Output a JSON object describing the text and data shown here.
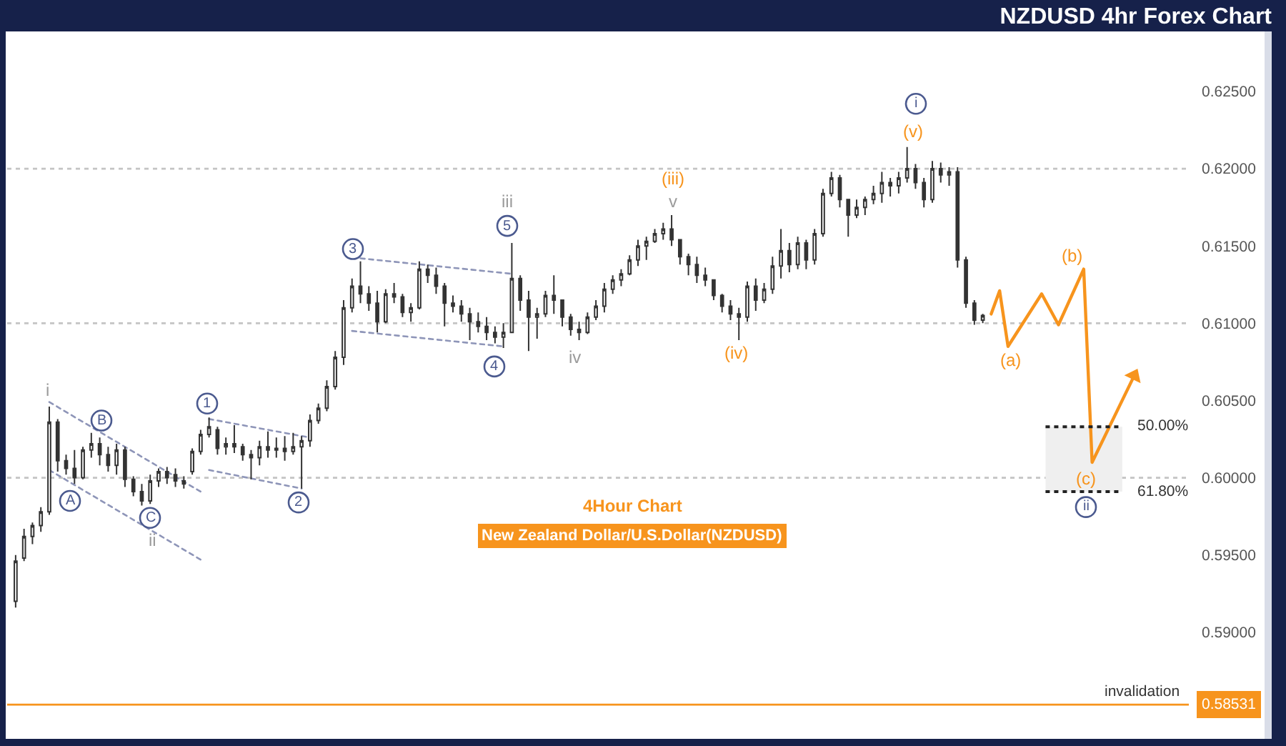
{
  "chart_data": {
    "type": "candlestick",
    "title": "NZDUSD 4hr Forex Chart",
    "categories": [
      null,
      null,
      null,
      null,
      null,
      null,
      null,
      null,
      null,
      null,
      null,
      null,
      null,
      null,
      null,
      null,
      null,
      null,
      null,
      null,
      null,
      null,
      null,
      null,
      null,
      null,
      null,
      null,
      null,
      null,
      null,
      null,
      null,
      null,
      null,
      null,
      null,
      null,
      null,
      null,
      null,
      null,
      null,
      null,
      null,
      null,
      null,
      null,
      null,
      null,
      null,
      null,
      null,
      null,
      null,
      null,
      null,
      null,
      null,
      null,
      null,
      null,
      null,
      null,
      null,
      null,
      null,
      null,
      null,
      null,
      null,
      null,
      null,
      null,
      null,
      null,
      null,
      null,
      null,
      null,
      null,
      null,
      null,
      null,
      null,
      null,
      null,
      null,
      null,
      null,
      null,
      null,
      null,
      null,
      null,
      null,
      null,
      null,
      null,
      null,
      null,
      null,
      null,
      null,
      null,
      null,
      null,
      null,
      null,
      null,
      null,
      null,
      null,
      null,
      null,
      null,
      null,
      null,
      null,
      null,
      null,
      null,
      null,
      null,
      null,
      null,
      null,
      null,
      null,
      null,
      null,
      null,
      null,
      null,
      null,
      null,
      null,
      null,
      null,
      null
    ],
    "color": "#333333",
    "ohlc": [
      [
        0.592,
        0.595,
        0.5916,
        0.5946
      ],
      [
        0.5948,
        0.5967,
        0.5946,
        0.5962
      ],
      [
        0.5962,
        0.5971,
        0.5957,
        0.5969
      ],
      [
        0.5969,
        0.5981,
        0.5965,
        0.5978
      ],
      [
        0.5978,
        0.6046,
        0.5976,
        0.6036
      ],
      [
        0.6036,
        0.6038,
        0.6004,
        0.6011
      ],
      [
        0.6011,
        0.6015,
        0.6002,
        0.6006
      ],
      [
        0.6006,
        0.6018,
        0.5996,
        0.6
      ],
      [
        0.6,
        0.602,
        0.5999,
        0.6018
      ],
      [
        0.6018,
        0.6029,
        0.6013,
        0.6022
      ],
      [
        0.6022,
        0.6026,
        0.6008,
        0.6015
      ],
      [
        0.6015,
        0.602,
        0.6004,
        0.6008
      ],
      [
        0.6008,
        0.6022,
        0.6002,
        0.6018
      ],
      [
        0.6018,
        0.602,
        0.5994,
        0.5999
      ],
      [
        0.5999,
        0.6001,
        0.5988,
        0.5991
      ],
      [
        0.5991,
        0.5996,
        0.5982,
        0.5985
      ],
      [
        0.5985,
        0.6002,
        0.5983,
        0.5998
      ],
      [
        0.5998,
        0.6006,
        0.5994,
        0.6004
      ],
      [
        0.6004,
        0.6007,
        0.5996,
        0.6
      ],
      [
        0.6002,
        0.6006,
        0.5994,
        0.5998
      ],
      [
        0.5998,
        0.6001,
        0.5993,
        0.5996
      ],
      [
        0.6004,
        0.6019,
        0.6002,
        0.6017
      ],
      [
        0.6017,
        0.6031,
        0.6015,
        0.6028
      ],
      [
        0.6028,
        0.6039,
        0.6026,
        0.6033
      ],
      [
        0.6031,
        0.6033,
        0.6015,
        0.6019
      ],
      [
        0.602,
        0.6026,
        0.6015,
        0.6022
      ],
      [
        0.6022,
        0.6034,
        0.6016,
        0.602
      ],
      [
        0.602,
        0.6022,
        0.6011,
        0.6015
      ],
      [
        0.6015,
        0.6018,
        0.5999,
        0.6013
      ],
      [
        0.6013,
        0.6024,
        0.6008,
        0.602
      ],
      [
        0.602,
        0.603,
        0.6013,
        0.6018
      ],
      [
        0.6018,
        0.6026,
        0.6013,
        0.6019
      ],
      [
        0.6019,
        0.6027,
        0.6011,
        0.6017
      ],
      [
        0.6017,
        0.6029,
        0.6015,
        0.602
      ],
      [
        0.602,
        0.6027,
        0.5993,
        0.6024
      ],
      [
        0.6024,
        0.6041,
        0.602,
        0.6037
      ],
      [
        0.6037,
        0.6048,
        0.6035,
        0.6045
      ],
      [
        0.6045,
        0.6063,
        0.6043,
        0.6059
      ],
      [
        0.6059,
        0.6082,
        0.6057,
        0.6078
      ],
      [
        0.6078,
        0.6115,
        0.6073,
        0.611
      ],
      [
        0.611,
        0.6129,
        0.6107,
        0.6124
      ],
      [
        0.6124,
        0.614,
        0.6113,
        0.6119
      ],
      [
        0.6119,
        0.6124,
        0.6108,
        0.6113
      ],
      [
        0.6113,
        0.6121,
        0.6094,
        0.6101
      ],
      [
        0.6101,
        0.6122,
        0.61,
        0.6119
      ],
      [
        0.6119,
        0.6126,
        0.6113,
        0.6117
      ],
      [
        0.6117,
        0.6119,
        0.6104,
        0.6107
      ],
      [
        0.6107,
        0.6113,
        0.6101,
        0.611
      ],
      [
        0.611,
        0.614,
        0.6109,
        0.6135
      ],
      [
        0.6135,
        0.6138,
        0.6126,
        0.6131
      ],
      [
        0.6131,
        0.6136,
        0.6119,
        0.6124
      ],
      [
        0.6124,
        0.6126,
        0.6098,
        0.6113
      ],
      [
        0.6113,
        0.6118,
        0.6107,
        0.6111
      ],
      [
        0.6111,
        0.6115,
        0.6101,
        0.6106
      ],
      [
        0.6106,
        0.611,
        0.6089,
        0.6101
      ],
      [
        0.6101,
        0.6107,
        0.6094,
        0.6098
      ],
      [
        0.6098,
        0.6104,
        0.6089,
        0.6094
      ],
      [
        0.6094,
        0.6098,
        0.6087,
        0.6091
      ],
      [
        0.6091,
        0.61,
        0.6084,
        0.6094
      ],
      [
        0.6094,
        0.6152,
        0.6094,
        0.6129
      ],
      [
        0.6129,
        0.6131,
        0.6108,
        0.6115
      ],
      [
        0.6115,
        0.6121,
        0.6082,
        0.6104
      ],
      [
        0.6104,
        0.611,
        0.609,
        0.6106
      ],
      [
        0.6106,
        0.6121,
        0.6104,
        0.6118
      ],
      [
        0.6118,
        0.6131,
        0.6106,
        0.6115
      ],
      [
        0.6115,
        0.6115,
        0.6098,
        0.6104
      ],
      [
        0.6104,
        0.6106,
        0.6092,
        0.6096
      ],
      [
        0.6096,
        0.6101,
        0.6089,
        0.6094
      ],
      [
        0.6094,
        0.6107,
        0.6093,
        0.6104
      ],
      [
        0.6104,
        0.6115,
        0.6102,
        0.6111
      ],
      [
        0.6111,
        0.6126,
        0.6107,
        0.6122
      ],
      [
        0.6122,
        0.6131,
        0.6119,
        0.6128
      ],
      [
        0.6128,
        0.6135,
        0.6124,
        0.6132
      ],
      [
        0.6132,
        0.6144,
        0.6131,
        0.6141
      ],
      [
        0.6141,
        0.6154,
        0.6137,
        0.615
      ],
      [
        0.615,
        0.6156,
        0.6141,
        0.6153
      ],
      [
        0.6153,
        0.6161,
        0.6152,
        0.6158
      ],
      [
        0.6158,
        0.6165,
        0.6154,
        0.6161
      ],
      [
        0.6161,
        0.617,
        0.615,
        0.6154
      ],
      [
        0.6154,
        0.6154,
        0.6138,
        0.6143
      ],
      [
        0.6143,
        0.6145,
        0.6131,
        0.6138
      ],
      [
        0.6138,
        0.6143,
        0.6126,
        0.6131
      ],
      [
        0.6131,
        0.6136,
        0.6124,
        0.6128
      ],
      [
        0.6128,
        0.6128,
        0.6115,
        0.6118
      ],
      [
        0.6118,
        0.6119,
        0.6107,
        0.6111
      ],
      [
        0.6111,
        0.6115,
        0.6102,
        0.6106
      ],
      [
        0.6106,
        0.611,
        0.6089,
        0.6104
      ],
      [
        0.6104,
        0.6127,
        0.6101,
        0.6124
      ],
      [
        0.6124,
        0.6129,
        0.6108,
        0.6115
      ],
      [
        0.6115,
        0.6126,
        0.6113,
        0.6122
      ],
      [
        0.6122,
        0.6143,
        0.6119,
        0.6137
      ],
      [
        0.6137,
        0.6161,
        0.6129,
        0.6147
      ],
      [
        0.6147,
        0.6152,
        0.6133,
        0.6138
      ],
      [
        0.6138,
        0.6156,
        0.6135,
        0.6152
      ],
      [
        0.6152,
        0.6154,
        0.6135,
        0.6141
      ],
      [
        0.6141,
        0.6161,
        0.6138,
        0.6158
      ],
      [
        0.6158,
        0.6187,
        0.6156,
        0.6184
      ],
      [
        0.6184,
        0.6198,
        0.6182,
        0.6194
      ],
      [
        0.6194,
        0.6196,
        0.6175,
        0.618
      ],
      [
        0.618,
        0.618,
        0.6156,
        0.617
      ],
      [
        0.617,
        0.618,
        0.6168,
        0.6175
      ],
      [
        0.6175,
        0.6182,
        0.617,
        0.618
      ],
      [
        0.618,
        0.6189,
        0.6177,
        0.6184
      ],
      [
        0.6184,
        0.6198,
        0.6178,
        0.6191
      ],
      [
        0.6191,
        0.6194,
        0.6182,
        0.6189
      ],
      [
        0.6189,
        0.6198,
        0.6184,
        0.6194
      ],
      [
        0.6194,
        0.6214,
        0.6191,
        0.62
      ],
      [
        0.62,
        0.6203,
        0.6187,
        0.6191
      ],
      [
        0.6191,
        0.6194,
        0.6175,
        0.618
      ],
      [
        0.618,
        0.6205,
        0.6178,
        0.62
      ],
      [
        0.62,
        0.6204,
        0.6191,
        0.6196
      ],
      [
        0.6196,
        0.6201,
        0.6189,
        0.6198
      ],
      [
        0.6198,
        0.6201,
        0.6136,
        0.6141
      ],
      [
        0.6141,
        0.6143,
        0.611,
        0.6113
      ],
      [
        0.6113,
        0.6115,
        0.6099,
        0.6102
      ],
      [
        0.6102,
        0.6106,
        0.61,
        0.6105
      ],
      null,
      null,
      null,
      null,
      null,
      null,
      null,
      null,
      null,
      null,
      null,
      null,
      null,
      null,
      null,
      null,
      null,
      null,
      null,
      null,
      null,
      null,
      null,
      null
    ],
    "series": [
      {
        "type": "line",
        "color": "#f7941d",
        "line_style": "solid",
        "values": [
          null,
          null,
          null,
          null,
          null,
          null,
          null,
          null,
          null,
          null,
          null,
          null,
          null,
          null,
          null,
          null,
          null,
          null,
          null,
          null,
          null,
          null,
          null,
          null,
          null,
          null,
          null,
          null,
          null,
          null,
          null,
          null,
          null,
          null,
          null,
          null,
          null,
          null,
          null,
          null,
          null,
          null,
          null,
          null,
          null,
          null,
          null,
          null,
          null,
          null,
          null,
          null,
          null,
          null,
          null,
          null,
          null,
          null,
          null,
          null,
          null,
          null,
          null,
          null,
          null,
          null,
          null,
          null,
          null,
          null,
          null,
          null,
          null,
          null,
          null,
          null,
          null,
          null,
          null,
          null,
          null,
          null,
          null,
          null,
          null,
          null,
          null,
          null,
          null,
          null,
          null,
          null,
          null,
          null,
          null,
          null,
          null,
          null,
          null,
          null,
          null,
          null,
          null,
          null,
          null,
          null,
          null,
          null,
          null,
          null,
          null,
          null,
          null,
          null,
          null,
          null,
          0.6106,
          0.6121,
          0.6085,
          null,
          null,
          null,
          0.6119,
          null,
          0.6099,
          null,
          null,
          0.6135,
          0.601,
          null,
          null,
          null,
          null,
          0.6066,
          null,
          null,
          null,
          null,
          null,
          null
        ]
      },
      {
        "type": "line",
        "color": "#8e95b8",
        "line_style": "dotted",
        "values": [
          null,
          null,
          null,
          null,
          0.6049,
          null,
          null,
          null,
          null,
          null,
          null,
          null,
          null,
          null,
          null,
          null,
          null,
          null,
          null,
          null,
          null,
          null,
          0.5991,
          null,
          null,
          null,
          null,
          null,
          null,
          null,
          null,
          null,
          null,
          null,
          null,
          null,
          null,
          null,
          null,
          null,
          null,
          null,
          null,
          null,
          null,
          null,
          null,
          null,
          null,
          null,
          null,
          null,
          null,
          null,
          null,
          null,
          null,
          null,
          null,
          null,
          null,
          null,
          null,
          null,
          null,
          null,
          null,
          null,
          null,
          null,
          null,
          null,
          null,
          null,
          null,
          null,
          null,
          null,
          null,
          null,
          null,
          null,
          null,
          null,
          null,
          null,
          null,
          null,
          null,
          null,
          null,
          null,
          null,
          null,
          null,
          null,
          null,
          null,
          null,
          null,
          null,
          null,
          null,
          null,
          null,
          null,
          null,
          null,
          null,
          null,
          null,
          null,
          null,
          null,
          null,
          null,
          null,
          null,
          null,
          null,
          null,
          null,
          null,
          null,
          null,
          null,
          null,
          null,
          null,
          null,
          null,
          null,
          null,
          null,
          null,
          null,
          null,
          null,
          null,
          null
        ]
      },
      {
        "type": "line",
        "color": "#8e95b8",
        "line_style": "dotted",
        "values": [
          null,
          null,
          null,
          null,
          0.6005,
          null,
          null,
          null,
          null,
          null,
          null,
          null,
          null,
          null,
          null,
          null,
          null,
          null,
          null,
          null,
          null,
          null,
          0.5947,
          null,
          null,
          null,
          null,
          null,
          null,
          null,
          null,
          null,
          null,
          null,
          null,
          null,
          null,
          null,
          null,
          null,
          null,
          null,
          null,
          null,
          null,
          null,
          null,
          null,
          null,
          null,
          null,
          null,
          null,
          null,
          null,
          null,
          null,
          null,
          null,
          null,
          null,
          null,
          null,
          null,
          null,
          null,
          null,
          null,
          null,
          null,
          null,
          null,
          null,
          null,
          null,
          null,
          null,
          null,
          null,
          null,
          null,
          null,
          null,
          null,
          null,
          null,
          null,
          null,
          null,
          null,
          null,
          null,
          null,
          null,
          null,
          null,
          null,
          null,
          null,
          null,
          null,
          null,
          null,
          null,
          null,
          null,
          null,
          null,
          null,
          null,
          null,
          null,
          null,
          null,
          null,
          null,
          null,
          null,
          null,
          null,
          null,
          null,
          null,
          null,
          null,
          null,
          null,
          null,
          null,
          null,
          null,
          null,
          null,
          null,
          null,
          null,
          null,
          null,
          null,
          null
        ]
      },
      {
        "type": "line",
        "color": "#8e95b8",
        "line_style": "dotted",
        "values": [
          null,
          null,
          null,
          null,
          null,
          null,
          null,
          null,
          null,
          null,
          null,
          null,
          null,
          null,
          null,
          null,
          null,
          null,
          null,
          null,
          null,
          null,
          null,
          0.6038,
          null,
          null,
          null,
          null,
          null,
          null,
          null,
          null,
          null,
          null,
          null,
          0.6026,
          null,
          null,
          null,
          null,
          null,
          null,
          null,
          null,
          null,
          null,
          null,
          null,
          null,
          null,
          null,
          null,
          null,
          null,
          null,
          null,
          null,
          null,
          null,
          null,
          null,
          null,
          null,
          null,
          null,
          null,
          null,
          null,
          null,
          null,
          null,
          null,
          null,
          null,
          null,
          null,
          null,
          null,
          null,
          null,
          null,
          null,
          null,
          null,
          null,
          null,
          null,
          null,
          null,
          null,
          null,
          null,
          null,
          null,
          null,
          null,
          null,
          null,
          null,
          null,
          null,
          null,
          null,
          null,
          null,
          null,
          null,
          null,
          null,
          null,
          null,
          null,
          null,
          null,
          null,
          null,
          null,
          null,
          null,
          null,
          null,
          null,
          null,
          null,
          null,
          null,
          null,
          null,
          null,
          null,
          null,
          null,
          null,
          null,
          null,
          null,
          null,
          null,
          null,
          null
        ]
      },
      {
        "type": "line",
        "color": "#8e95b8",
        "line_style": "dotted",
        "values": [
          null,
          null,
          null,
          null,
          null,
          null,
          null,
          null,
          null,
          null,
          null,
          null,
          null,
          null,
          null,
          null,
          null,
          null,
          null,
          null,
          null,
          null,
          null,
          0.6005,
          null,
          null,
          null,
          null,
          null,
          null,
          null,
          null,
          null,
          null,
          0.5993,
          null,
          null,
          null,
          null,
          null,
          null,
          null,
          null,
          null,
          null,
          null,
          null,
          null,
          null,
          null,
          null,
          null,
          null,
          null,
          null,
          null,
          null,
          null,
          null,
          null,
          null,
          null,
          null,
          null,
          null,
          null,
          null,
          null,
          null,
          null,
          null,
          null,
          null,
          null,
          null,
          null,
          null,
          null,
          null,
          null,
          null,
          null,
          null,
          null,
          null,
          null,
          null,
          null,
          null,
          null,
          null,
          null,
          null,
          null,
          null,
          null,
          null,
          null,
          null,
          null,
          null,
          null,
          null,
          null,
          null,
          null,
          null,
          null,
          null,
          null,
          null,
          null,
          null,
          null,
          null,
          null,
          null,
          null,
          null,
          null,
          null,
          null,
          null,
          null,
          null,
          null,
          null,
          null,
          null,
          null,
          null,
          null,
          null,
          null,
          null,
          null,
          null,
          null,
          null,
          null
        ]
      },
      {
        "type": "line",
        "color": "#8e95b8",
        "line_style": "dotted",
        "values": [
          null,
          null,
          null,
          null,
          null,
          null,
          null,
          null,
          null,
          null,
          null,
          null,
          null,
          null,
          null,
          null,
          null,
          null,
          null,
          null,
          null,
          null,
          null,
          null,
          null,
          null,
          null,
          null,
          null,
          null,
          null,
          null,
          null,
          null,
          null,
          null,
          null,
          null,
          null,
          null,
          null,
          0.6142,
          null,
          null,
          null,
          null,
          null,
          null,
          null,
          null,
          null,
          null,
          null,
          null,
          null,
          null,
          null,
          null,
          null,
          0.6132,
          null,
          null,
          null,
          null,
          null,
          null,
          null,
          null,
          null,
          null,
          null,
          null,
          null,
          null,
          null,
          null,
          null,
          null,
          null,
          null,
          null,
          null,
          null,
          null,
          null,
          null,
          null,
          null,
          null,
          null,
          null,
          null,
          null,
          null,
          null,
          null,
          null,
          null,
          null,
          null,
          null,
          null,
          null,
          null,
          null,
          null,
          null,
          null,
          null,
          null,
          null,
          null,
          null,
          null,
          null,
          null,
          null,
          null,
          null,
          null,
          null,
          null,
          null,
          null,
          null,
          null,
          null,
          null,
          null,
          null,
          null,
          null,
          null,
          null,
          null,
          null,
          null,
          null,
          null,
          null
        ]
      },
      {
        "type": "line",
        "color": "#8e95b8",
        "line_style": "dotted",
        "values": [
          null,
          null,
          null,
          null,
          null,
          null,
          null,
          null,
          null,
          null,
          null,
          null,
          null,
          null,
          null,
          null,
          null,
          null,
          null,
          null,
          null,
          null,
          null,
          null,
          null,
          null,
          null,
          null,
          null,
          null,
          null,
          null,
          null,
          null,
          null,
          null,
          null,
          null,
          null,
          null,
          0.6095,
          null,
          null,
          null,
          null,
          null,
          null,
          null,
          null,
          null,
          null,
          null,
          null,
          null,
          null,
          null,
          null,
          null,
          0.6085,
          null,
          null,
          null,
          null,
          null,
          null,
          null,
          null,
          null,
          null,
          null,
          null,
          null,
          null,
          null,
          null,
          null,
          null,
          null,
          null,
          null,
          null,
          null,
          null,
          null,
          null,
          null,
          null,
          null,
          null,
          null,
          null,
          null,
          null,
          null,
          null,
          null,
          null,
          null,
          null,
          null,
          null,
          null,
          null,
          null,
          null,
          null,
          null,
          null,
          null,
          null,
          null,
          null,
          null,
          null,
          null,
          null,
          null,
          null,
          null,
          null,
          null,
          null,
          null,
          null,
          null,
          null,
          null,
          null,
          null,
          null,
          null,
          null,
          null,
          null,
          null,
          null,
          null,
          null,
          null,
          null
        ]
      }
    ],
    "ylim": [
      0.5831,
      0.625
    ],
    "yticks": [
      {
        "value": 0.59,
        "label": "0.59000"
      },
      {
        "value": 0.595,
        "label": "0.59500"
      },
      {
        "value": 0.6,
        "label": "0.60000"
      },
      {
        "value": 0.605,
        "label": "0.60500"
      },
      {
        "value": 0.61,
        "label": "0.61000"
      },
      {
        "value": 0.615,
        "label": "0.61500"
      },
      {
        "value": 0.62,
        "label": "0.62000"
      },
      {
        "value": 0.625,
        "label": "0.62500"
      }
    ],
    "tick_labels": "y",
    "bands": [
      {
        "axis": "y",
        "from": 0.5991,
        "to": 0.6033,
        "color": "#efefef"
      }
    ],
    "ref_lines": [
      {
        "axis": "y",
        "value": 0.62,
        "color": "#c4c4c4",
        "line_style": "dotted"
      },
      {
        "axis": "y",
        "value": 0.61,
        "color": "#c4c4c4",
        "line_style": "dotted"
      },
      {
        "axis": "y",
        "value": 0.6,
        "color": "#c4c4c4",
        "line_style": "dotted"
      },
      {
        "axis": "y",
        "value": 0.58531,
        "label": "0.58531",
        "color": "#f7941d",
        "line_style": "solid"
      }
    ],
    "annotations": [
      "4Hour Chart",
      "New Zealand Dollar/U.S.Dollar(NZDUSD)",
      "i",
      {
        "text": "A",
        "y": 0.5985
      },
      {
        "text": "B",
        "y": 0.6037
      },
      {
        "text": "C",
        "y": 0.5974
      },
      "ii",
      {
        "text": "1",
        "y": 0.6048
      },
      {
        "text": "2",
        "y": 0.5984
      },
      {
        "text": "3",
        "y": 0.6148
      },
      "iii",
      {
        "text": "5",
        "y": 0.6163
      },
      {
        "text": "4",
        "y": 0.6072
      },
      "iv",
      "(iii)",
      "v",
      "(iv)",
      "(v)",
      {
        "text": "i",
        "y": 0.6242
      },
      "(a)",
      "(b)",
      "(c)",
      {
        "text": "ii",
        "y": 0.5981
      },
      "50.00%",
      "61.80%",
      {
        "text": "invalidation",
        "y": 0.58531
      }
    ]
  }
}
